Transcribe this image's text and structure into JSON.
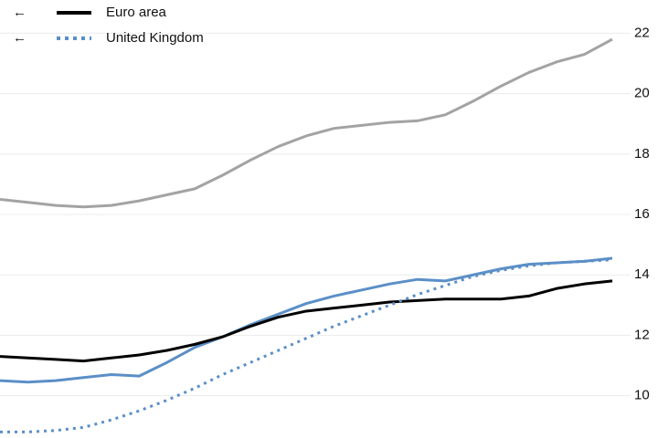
{
  "chart_data": {
    "type": "line",
    "legend_prefix": "←",
    "series": [
      {
        "color": "#a3a3a3",
        "linestyle": "solid",
        "values": [
          16.5,
          16.4,
          16.3,
          16.25,
          16.3,
          16.45,
          16.65,
          16.85,
          17.3,
          17.8,
          18.25,
          18.6,
          18.85,
          18.95,
          19.05,
          19.1,
          19.3,
          19.75,
          20.25,
          20.7,
          21.05,
          21.3,
          21.8
        ]
      },
      {
        "color": "#5b8fc7",
        "linestyle": "solid",
        "values": [
          10.5,
          10.45,
          10.5,
          10.6,
          10.7,
          10.65,
          11.1,
          11.6,
          11.95,
          12.35,
          12.7,
          13.05,
          13.3,
          13.5,
          13.7,
          13.85,
          13.8,
          14.0,
          14.2,
          14.35,
          14.4,
          14.45,
          14.55
        ]
      },
      {
        "name": "Euro area",
        "color": "#000000",
        "linestyle": "solid",
        "values": [
          11.3,
          11.25,
          11.2,
          11.15,
          11.25,
          11.35,
          11.5,
          11.7,
          11.95,
          12.3,
          12.6,
          12.8,
          12.9,
          13.0,
          13.1,
          13.15,
          13.2,
          13.2,
          13.2,
          13.3,
          13.55,
          13.7,
          13.8
        ]
      },
      {
        "name": "United Kingdom",
        "color": "#5b8fc7",
        "linestyle": "dotted",
        "values": [
          8.8,
          8.8,
          8.85,
          8.95,
          9.2,
          9.5,
          9.85,
          10.25,
          10.7,
          11.1,
          11.5,
          11.9,
          12.3,
          12.65,
          13.0,
          13.35,
          13.65,
          13.95,
          14.15,
          14.3,
          14.4,
          14.45,
          14.5
        ]
      }
    ],
    "ylim": [
      8.6,
      23.1
    ],
    "yticks": [
      10,
      12,
      14,
      16,
      18,
      20,
      22
    ],
    "grid": true
  }
}
